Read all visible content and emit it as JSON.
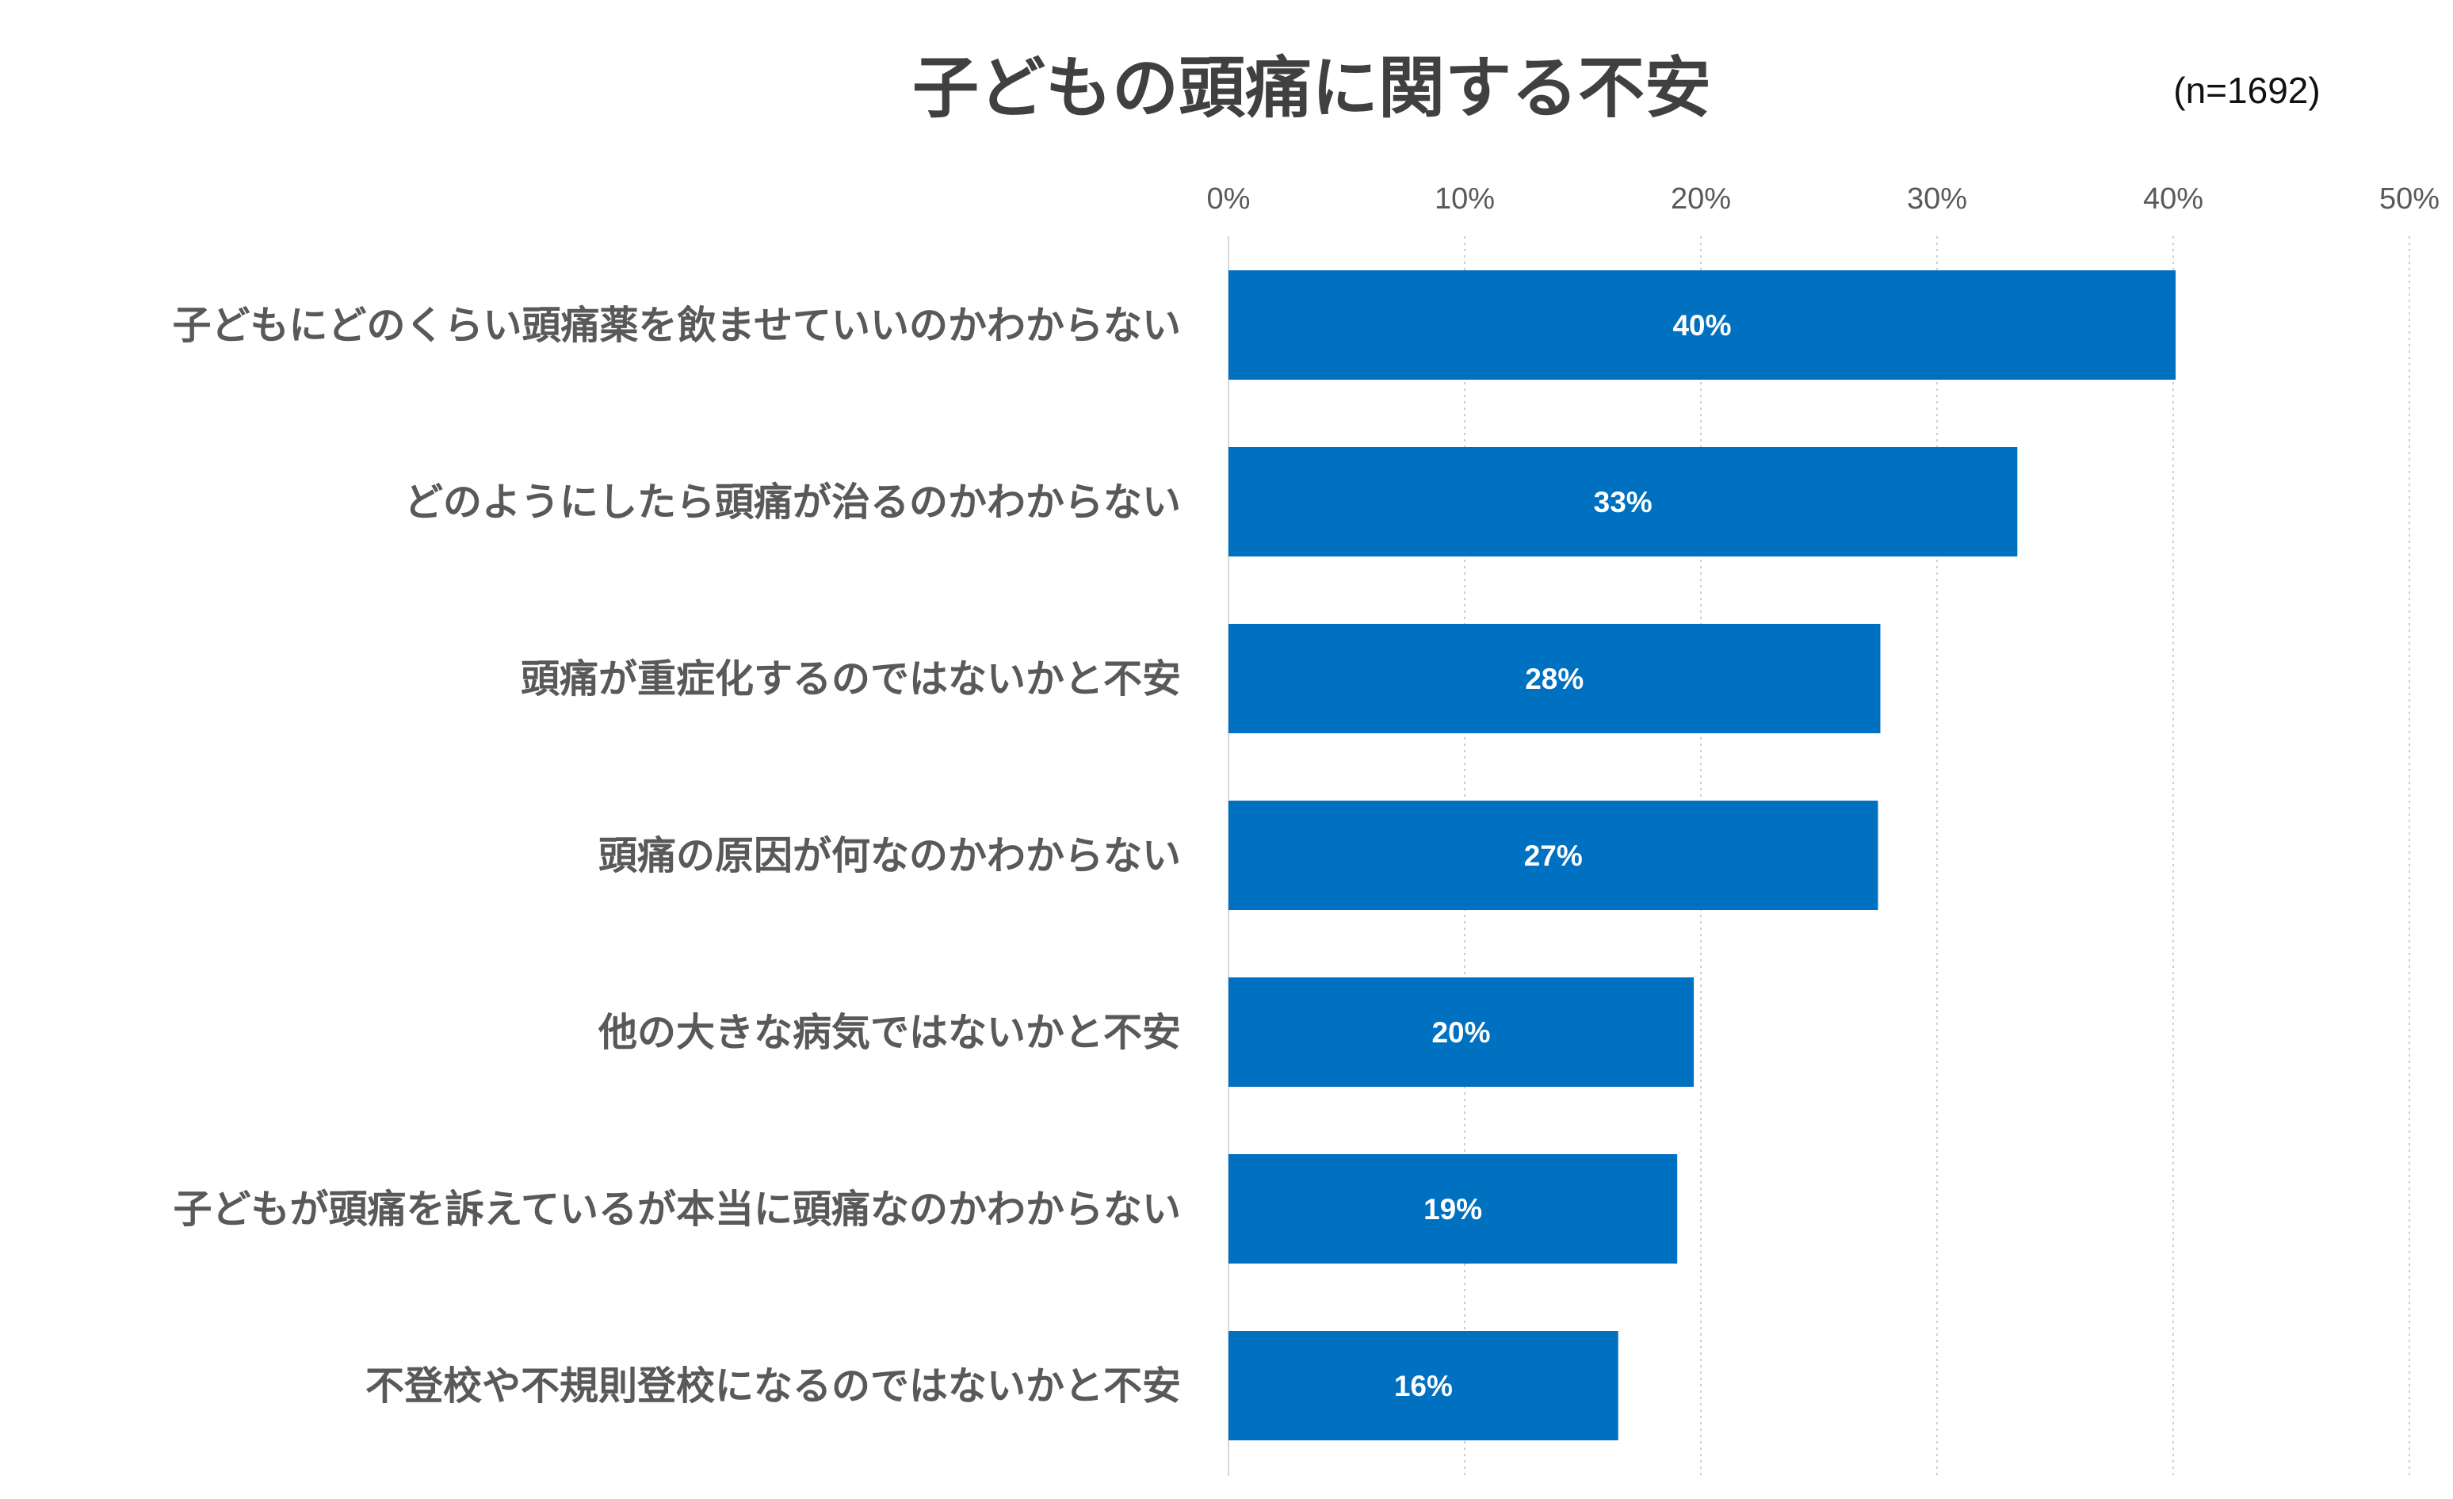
{
  "chart_data": {
    "type": "bar",
    "orientation": "horizontal",
    "title": "子どもの頭痛に関する不安",
    "subtitle": "(n=1692)",
    "xlabel": "",
    "ylabel": "",
    "xlim": [
      0,
      50
    ],
    "ticks": [
      0,
      10,
      20,
      30,
      40,
      50
    ],
    "tick_labels": [
      "0%",
      "10%",
      "20%",
      "30%",
      "40%",
      "50%"
    ],
    "grid": true,
    "legend": "none",
    "bar_color": "#0070C0",
    "categories": [
      "子どもにどのくらい頭痛薬を飲ませていいのかわからない",
      "どのようにしたら頭痛が治るのかわからない",
      "頭痛が重症化するのではないかと不安",
      "頭痛の原因が何なのかわからない",
      "他の大きな病気ではないかと不安",
      "子どもが頭痛を訴えているが本当に頭痛なのかわからない",
      "不登校や不規則登校になるのではないかと不安"
    ],
    "values": [
      40.1,
      33.4,
      27.6,
      27.5,
      19.7,
      19.0,
      16.5
    ],
    "data_labels": [
      "40%",
      "33%",
      "28%",
      "27%",
      "20%",
      "19%",
      "16%"
    ]
  }
}
